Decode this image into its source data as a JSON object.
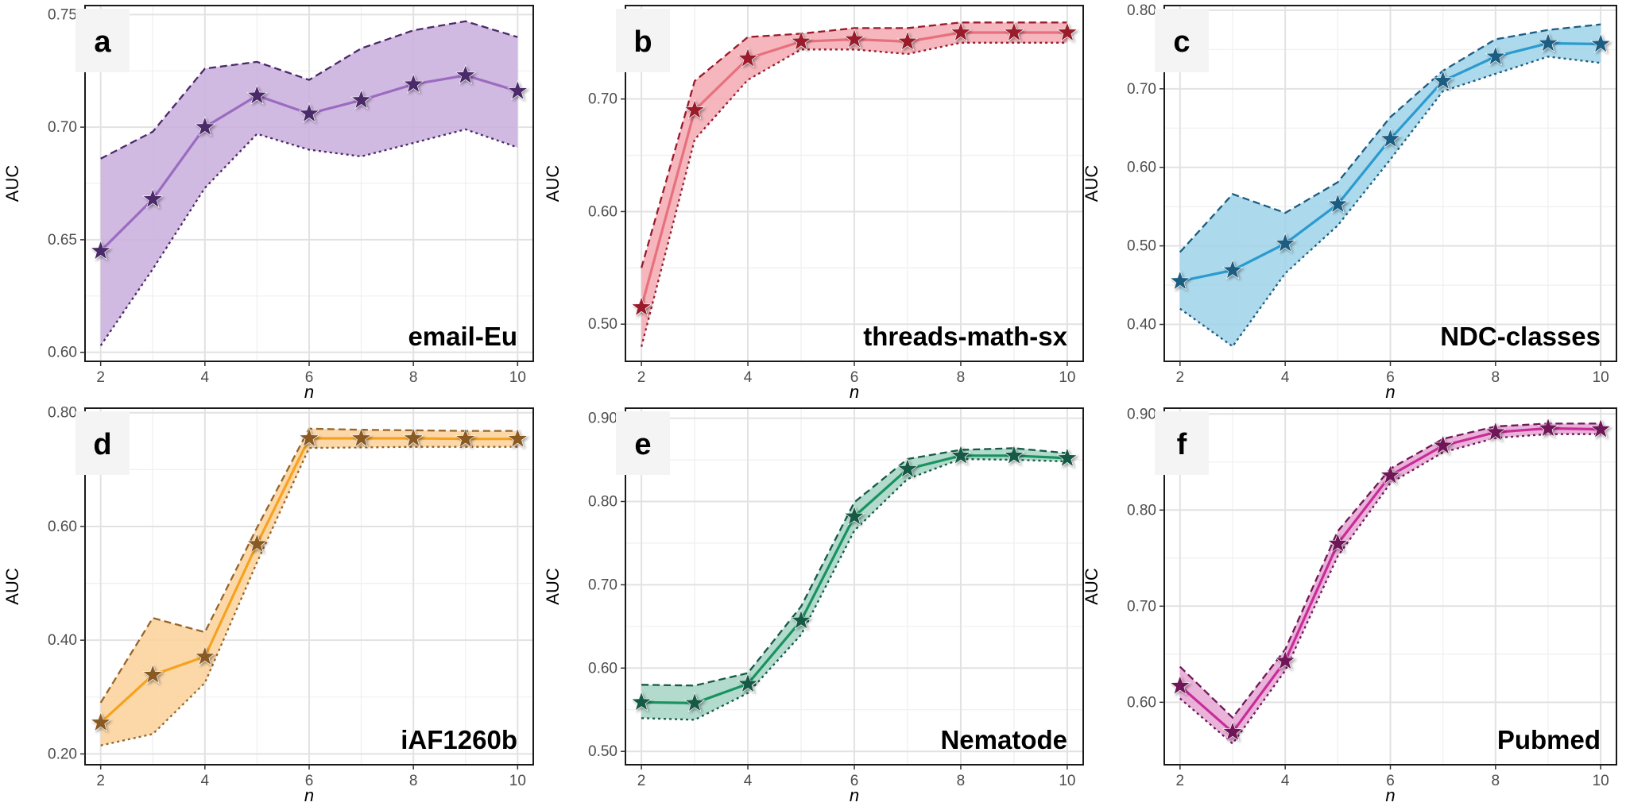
{
  "chart_data": [
    {
      "panel": "a",
      "dataset": "email-Eu",
      "type": "line",
      "xlabel": "n",
      "ylabel": "AUC",
      "x": [
        2,
        3,
        4,
        5,
        6,
        7,
        8,
        9,
        10
      ],
      "xticks": [
        2,
        4,
        6,
        8,
        10
      ],
      "xlim": [
        1.7,
        10.3
      ],
      "yticks": [
        0.6,
        0.65,
        0.7,
        0.75
      ],
      "ytick_labels": [
        "0.60",
        "0.65",
        "0.70",
        "0.75"
      ],
      "ylim": [
        0.596,
        0.754
      ],
      "color": "#9b6bc0",
      "fill": "#c9aedd",
      "edge": "#4b2a6b",
      "star": "#4b2a6b",
      "mean": [
        0.645,
        0.668,
        0.7,
        0.714,
        0.706,
        0.712,
        0.719,
        0.723,
        0.716
      ],
      "upper": [
        0.686,
        0.698,
        0.726,
        0.729,
        0.721,
        0.735,
        0.743,
        0.747,
        0.74
      ],
      "lower": [
        0.603,
        0.637,
        0.673,
        0.697,
        0.69,
        0.687,
        0.693,
        0.699,
        0.691
      ]
    },
    {
      "panel": "b",
      "dataset": "threads-math-sx",
      "type": "line",
      "xlabel": "n",
      "ylabel": "AUC",
      "x": [
        2,
        3,
        4,
        5,
        6,
        7,
        8,
        9,
        10
      ],
      "xticks": [
        2,
        4,
        6,
        8,
        10
      ],
      "xlim": [
        1.7,
        10.3
      ],
      "yticks": [
        0.5,
        0.6,
        0.7
      ],
      "ytick_labels": [
        "0.50",
        "0.60",
        "0.70"
      ],
      "ylim": [
        0.467,
        0.783
      ],
      "color": "#e8707c",
      "fill": "#f3a9b1",
      "edge": "#9a1a2c",
      "star": "#9a1a2c",
      "mean": [
        0.515,
        0.69,
        0.736,
        0.751,
        0.753,
        0.751,
        0.759,
        0.759,
        0.759
      ],
      "upper": [
        0.55,
        0.716,
        0.755,
        0.758,
        0.763,
        0.763,
        0.768,
        0.768,
        0.768
      ],
      "lower": [
        0.48,
        0.664,
        0.717,
        0.744,
        0.744,
        0.74,
        0.75,
        0.75,
        0.75
      ]
    },
    {
      "panel": "c",
      "dataset": "NDC-classes",
      "type": "line",
      "xlabel": "n",
      "ylabel": "AUC",
      "x": [
        2,
        3,
        4,
        5,
        6,
        7,
        8,
        9,
        10
      ],
      "xticks": [
        2,
        4,
        6,
        8,
        10
      ],
      "xlim": [
        1.7,
        10.3
      ],
      "yticks": [
        0.4,
        0.5,
        0.6,
        0.7,
        0.8
      ],
      "ytick_labels": [
        "0.40",
        "0.50",
        "0.60",
        "0.70",
        "0.80"
      ],
      "ylim": [
        0.353,
        0.806
      ],
      "color": "#2b9bcf",
      "fill": "#9dd2e8",
      "edge": "#1c5d82",
      "star": "#1c5d82",
      "mean": [
        0.455,
        0.469,
        0.503,
        0.553,
        0.636,
        0.71,
        0.741,
        0.758,
        0.757
      ],
      "upper": [
        0.492,
        0.566,
        0.542,
        0.581,
        0.664,
        0.723,
        0.763,
        0.775,
        0.782
      ],
      "lower": [
        0.42,
        0.372,
        0.465,
        0.526,
        0.61,
        0.697,
        0.719,
        0.741,
        0.733
      ]
    },
    {
      "panel": "d",
      "dataset": "iAF1260b",
      "type": "line",
      "xlabel": "n",
      "ylabel": "AUC",
      "x": [
        2,
        3,
        4,
        5,
        6,
        7,
        8,
        9,
        10
      ],
      "xticks": [
        2,
        4,
        6,
        8,
        10
      ],
      "xlim": [
        1.7,
        10.3
      ],
      "yticks": [
        0.2,
        0.4,
        0.6,
        0.8
      ],
      "ytick_labels": [
        "0.20",
        "0.40",
        "0.60",
        "0.80"
      ],
      "ylim": [
        0.181,
        0.808
      ],
      "color": "#f7a21e",
      "fill": "#fbd19a",
      "edge": "#96662a",
      "star": "#8a5a22",
      "mean": [
        0.255,
        0.339,
        0.371,
        0.569,
        0.755,
        0.755,
        0.755,
        0.754,
        0.754
      ],
      "upper": [
        0.29,
        0.439,
        0.414,
        0.598,
        0.772,
        0.77,
        0.769,
        0.768,
        0.768
      ],
      "lower": [
        0.215,
        0.235,
        0.325,
        0.537,
        0.738,
        0.739,
        0.74,
        0.74,
        0.74
      ]
    },
    {
      "panel": "e",
      "dataset": "Nematode",
      "type": "line",
      "xlabel": "n",
      "ylabel": "AUC",
      "x": [
        2,
        3,
        4,
        5,
        6,
        7,
        8,
        9,
        10
      ],
      "xticks": [
        2,
        4,
        6,
        8,
        10
      ],
      "xlim": [
        1.7,
        10.3
      ],
      "yticks": [
        0.5,
        0.6,
        0.7,
        0.8,
        0.9
      ],
      "ytick_labels": [
        "0.50",
        "0.60",
        "0.70",
        "0.80",
        "0.90"
      ],
      "ylim": [
        0.484,
        0.912
      ],
      "color": "#18935f",
      "fill": "#a5d3c4",
      "edge": "#155a45",
      "star": "#155a45",
      "mean": [
        0.559,
        0.558,
        0.581,
        0.657,
        0.782,
        0.839,
        0.855,
        0.855,
        0.852
      ],
      "upper": [
        0.58,
        0.579,
        0.594,
        0.674,
        0.799,
        0.851,
        0.862,
        0.864,
        0.858
      ],
      "lower": [
        0.54,
        0.538,
        0.57,
        0.64,
        0.765,
        0.827,
        0.851,
        0.85,
        0.848
      ]
    },
    {
      "panel": "f",
      "dataset": "Pubmed",
      "type": "line",
      "xlabel": "n",
      "ylabel": "AUC",
      "x": [
        2,
        3,
        4,
        5,
        6,
        7,
        8,
        9,
        10
      ],
      "xticks": [
        2,
        4,
        6,
        8,
        10
      ],
      "xlim": [
        1.7,
        10.3
      ],
      "yticks": [
        0.6,
        0.7,
        0.8,
        0.9
      ],
      "ytick_labels": [
        "0.60",
        "0.70",
        "0.80",
        "0.90"
      ],
      "ylim": [
        0.535,
        0.906
      ],
      "color": "#c92c9a",
      "fill": "#e6a6d2",
      "edge": "#6f1758",
      "star": "#6f1758",
      "mean": [
        0.617,
        0.569,
        0.643,
        0.765,
        0.836,
        0.867,
        0.881,
        0.885,
        0.884
      ],
      "upper": [
        0.637,
        0.584,
        0.655,
        0.778,
        0.843,
        0.874,
        0.887,
        0.89,
        0.89
      ],
      "lower": [
        0.604,
        0.557,
        0.633,
        0.752,
        0.828,
        0.86,
        0.875,
        0.879,
        0.879
      ]
    }
  ]
}
